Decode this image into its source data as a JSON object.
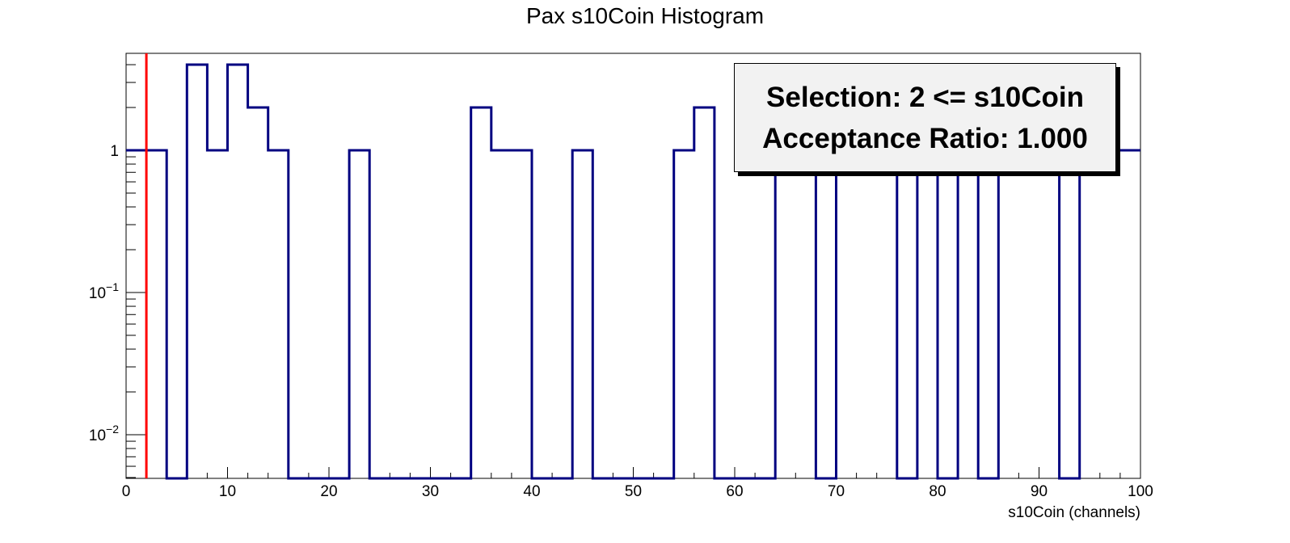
{
  "chart_data": {
    "type": "histogram",
    "title": "Pax s10Coin Histogram",
    "xlabel": "s10Coin (channels)",
    "ylabel": "",
    "xlim": [
      0,
      100
    ],
    "ylim": [
      0.005,
      4
    ],
    "y_scale": "log",
    "grid": false,
    "bin_width": 2,
    "x_ticks": [
      "0",
      "10",
      "20",
      "30",
      "40",
      "50",
      "60",
      "70",
      "80",
      "90",
      "100"
    ],
    "x_tick_values": [
      0,
      10,
      20,
      30,
      40,
      50,
      60,
      70,
      80,
      90,
      100
    ],
    "y_tick_values": [
      0.01,
      0.1,
      1
    ],
    "y_tick_labels": [
      {
        "base": "10",
        "exp": "−2"
      },
      {
        "base": "10",
        "exp": "−1"
      },
      {
        "base": "1",
        "exp": ""
      }
    ],
    "series": [
      {
        "color": "#000080",
        "bin_edges": [
          0,
          2,
          4,
          6,
          8,
          10,
          12,
          14,
          16,
          18,
          20,
          22,
          24,
          26,
          28,
          30,
          32,
          34,
          36,
          38,
          40,
          42,
          44,
          46,
          48,
          50,
          52,
          54,
          56,
          58,
          60,
          62,
          64,
          66,
          68,
          70,
          72,
          74,
          76,
          78,
          80,
          82,
          84,
          86,
          88,
          90,
          92,
          94,
          96,
          98,
          100
        ],
        "values": [
          1,
          1,
          0,
          4,
          1,
          4,
          2,
          1,
          0,
          0,
          0,
          1,
          0,
          0,
          0,
          0,
          0,
          2,
          1,
          1,
          0,
          0,
          1,
          0,
          0,
          0,
          0,
          1,
          2,
          0,
          0,
          0,
          1,
          1,
          0,
          1,
          1,
          1,
          0,
          1,
          0,
          1,
          0,
          1,
          1,
          1,
          0,
          1,
          1,
          1
        ]
      }
    ],
    "cut_line": {
      "x": 2,
      "color": "#ff0000"
    },
    "stats_box": {
      "line1": "Selection: 2 <= s10Coin",
      "line2": "Acceptance Ratio: 1.000"
    }
  }
}
